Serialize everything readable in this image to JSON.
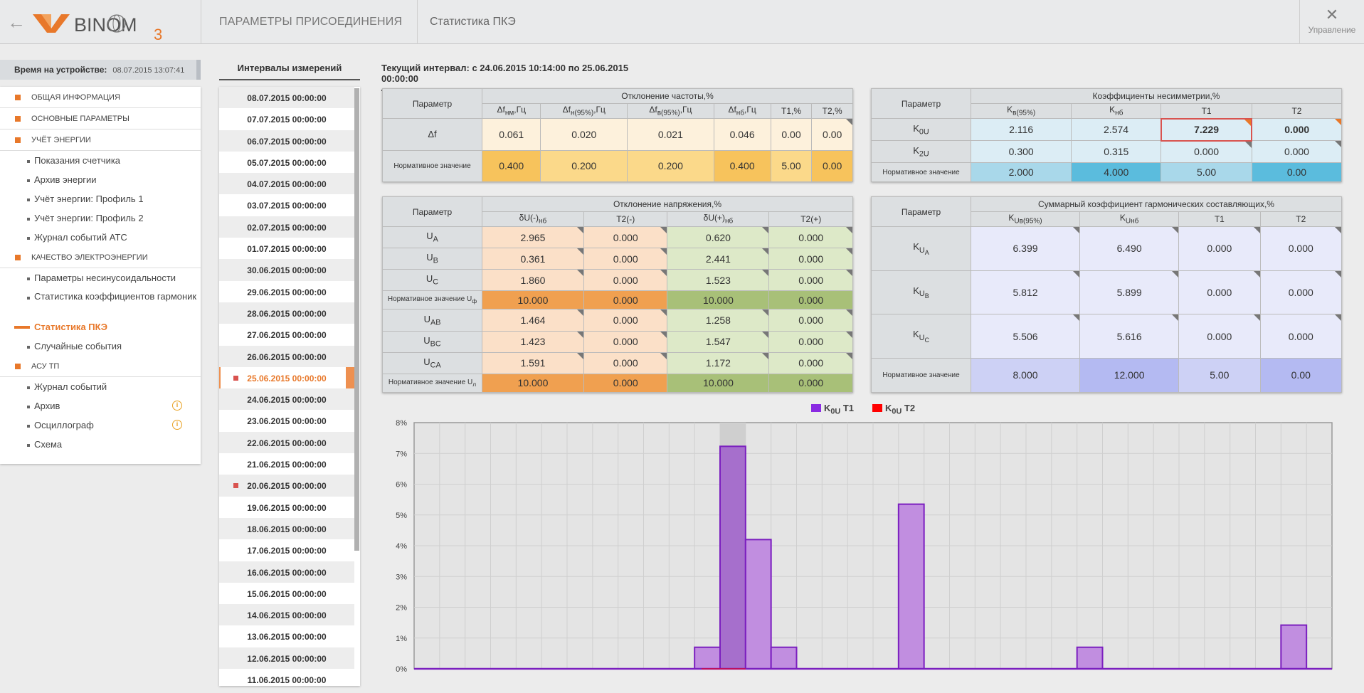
{
  "header": {
    "back_label": "←",
    "logo_text": "BINOM",
    "logo_sub": "3",
    "crumb1": "ПАРАМЕТРЫ ПРИСОЕДИНЕНИЯ",
    "crumb2": "Статистика ПКЭ",
    "mgmt_label": "Управление",
    "mgmt_icon": "wrench-icon"
  },
  "device": {
    "label": "Время на устройстве:",
    "value": "08.07.2015 13:07:41"
  },
  "sidebar": [
    {
      "type": "sec",
      "label": "ОБЩАЯ ИНФОРМАЦИЯ"
    },
    {
      "type": "sec",
      "label": "ОСНОВНЫЕ ПАРАМЕТРЫ"
    },
    {
      "type": "sec",
      "label": "УЧЁТ ЭНЕРГИИ"
    },
    {
      "type": "sub",
      "label": "Показания счетчика"
    },
    {
      "type": "sub",
      "label": "Архив энергии"
    },
    {
      "type": "sub",
      "label": "Учёт энергии: Профиль 1"
    },
    {
      "type": "sub",
      "label": "Учёт энергии: Профиль 2"
    },
    {
      "type": "sub",
      "label": "Журнал событий АТС"
    },
    {
      "type": "sec",
      "label": "КАЧЕСТВО ЭЛЕКТРОЭНЕРГИИ"
    },
    {
      "type": "sub",
      "label": "Параметры несинусоидальности"
    },
    {
      "type": "sub2",
      "label": "Статистика коэффициентов гармоник"
    },
    {
      "type": "act",
      "label": "Статистика ПКЭ"
    },
    {
      "type": "sub",
      "label": "Случайные события"
    },
    {
      "type": "sec",
      "label": "АСУ ТП"
    },
    {
      "type": "sub",
      "label": "Журнал событий"
    },
    {
      "type": "subi",
      "label": "Архив"
    },
    {
      "type": "subi",
      "label": "Осциллограф"
    },
    {
      "type": "sub",
      "label": "Схема"
    }
  ],
  "intervals": {
    "title": "Интервалы измерений",
    "items": [
      "08.07.2015 00:00:00",
      "07.07.2015 00:00:00",
      "06.07.2015 00:00:00",
      "05.07.2015 00:00:00",
      "04.07.2015 00:00:00",
      "03.07.2015 00:00:00",
      "02.07.2015 00:00:00",
      "01.07.2015 00:00:00",
      "30.06.2015 00:00:00",
      "29.06.2015 00:00:00",
      "28.06.2015 00:00:00",
      "27.06.2015 00:00:00",
      "26.06.2015 00:00:00",
      "25.06.2015 00:00:00",
      "24.06.2015 00:00:00",
      "23.06.2015 00:00:00",
      "22.06.2015 00:00:00",
      "21.06.2015 00:00:00",
      "20.06.2015 00:00:00",
      "19.06.2015 00:00:00",
      "18.06.2015 00:00:00",
      "17.06.2015 00:00:00",
      "16.06.2015 00:00:00",
      "15.06.2015 00:00:00",
      "14.06.2015 00:00:00",
      "13.06.2015 00:00:00",
      "12.06.2015 00:00:00",
      "11.06.2015 00:00:00"
    ],
    "selected": 13,
    "marked": [
      13,
      18
    ]
  },
  "current_interval": "Текущий интервал: с 24.06.2015 10:14:00 по 25.06.2015 00:00:00",
  "freq": {
    "param": "Параметр",
    "group": "Отклонение частоты,%",
    "cols": [
      "Δf<sub>нм</sub>,Гц",
      "Δf<sub>н(95%)</sub>,Гц",
      "Δf<sub>в(95%)</sub>,Гц",
      "Δf<sub>нб</sub>,Гц",
      "T1,%",
      "T2,%"
    ],
    "row_label": "Δf",
    "row": [
      "0.061",
      "0.020",
      "0.021",
      "0.046",
      "0.00",
      "0.00"
    ],
    "norm_label": "Нормативное значение",
    "norm": [
      "0.400",
      "0.200",
      "0.200",
      "0.400",
      "5.00",
      "0.00"
    ]
  },
  "unb": {
    "param": "Параметр",
    "group": "Коэффициенты несимметрии,%",
    "cols": [
      "K<sub>в(95%)</sub>",
      "K<sub>нб</sub>",
      "T1",
      "T2"
    ],
    "rows": [
      {
        "label": "K<sub>0U</sub>",
        "vals": [
          "2.116",
          "2.574",
          "7.229",
          "0.000"
        ]
      },
      {
        "label": "K<sub>2U</sub>",
        "vals": [
          "0.300",
          "0.315",
          "0.000",
          "0.000"
        ]
      }
    ],
    "norm_label": "Нормативное значение",
    "norm": [
      "2.000",
      "4.000",
      "5.00",
      "0.00"
    ]
  },
  "volt": {
    "param": "Параметр",
    "group": "Отклонение напряжения,%",
    "cols": [
      "δU(-)<sub>нб</sub>",
      "T2(-)",
      "δU(+)<sub>нб</sub>",
      "T2(+)"
    ],
    "rows": [
      {
        "label": "U<sub>A</sub>",
        "vals": [
          "2.965",
          "0.000",
          "0.620",
          "0.000"
        ]
      },
      {
        "label": "U<sub>B</sub>",
        "vals": [
          "0.361",
          "0.000",
          "2.441",
          "0.000"
        ]
      },
      {
        "label": "U<sub>C</sub>",
        "vals": [
          "1.860",
          "0.000",
          "1.523",
          "0.000"
        ]
      },
      {
        "label": "Нормативное значение U<sub>ф</sub>",
        "norm": true,
        "vals": [
          "10.000",
          "0.000",
          "10.000",
          "0.000"
        ]
      },
      {
        "label": "U<sub>AB</sub>",
        "vals": [
          "1.464",
          "0.000",
          "1.258",
          "0.000"
        ]
      },
      {
        "label": "U<sub>BC</sub>",
        "vals": [
          "1.423",
          "0.000",
          "1.547",
          "0.000"
        ]
      },
      {
        "label": "U<sub>CA</sub>",
        "vals": [
          "1.591",
          "0.000",
          "1.172",
          "0.000"
        ]
      },
      {
        "label": "Нормативное значение U<sub>л</sub>",
        "norm": true,
        "vals": [
          "10.000",
          "0.000",
          "10.000",
          "0.000"
        ]
      }
    ]
  },
  "harm": {
    "param": "Параметр",
    "group": "Суммарный коэффициент гармонических составляющих,%",
    "cols": [
      "K<sub>Uв(95%)</sub>",
      "K<sub>Uнб</sub>",
      "T1",
      "T2"
    ],
    "rows": [
      {
        "label": "K<sub>U<sub>A</sub></sub>",
        "vals": [
          "6.399",
          "6.490",
          "0.000",
          "0.000"
        ]
      },
      {
        "label": "K<sub>U<sub>B</sub></sub>",
        "vals": [
          "5.812",
          "5.899",
          "0.000",
          "0.000"
        ]
      },
      {
        "label": "K<sub>U<sub>C</sub></sub>",
        "vals": [
          "5.506",
          "5.616",
          "0.000",
          "0.000"
        ]
      }
    ],
    "norm_label": "Нормативное значение",
    "norm": [
      "8.000",
      "12.000",
      "5.00",
      "0.00"
    ]
  },
  "chart_data": {
    "type": "bar",
    "series": [
      {
        "name": "K0U T1",
        "color": "#8a2be2"
      },
      {
        "name": "K0U T2",
        "color": "#ff0000"
      }
    ],
    "legend": [
      "K<sub>0U</sub> T1",
      "K<sub>0U</sub> T2"
    ],
    "y_ticks": [
      "0%",
      "1%",
      "2%",
      "3%",
      "4%",
      "5%",
      "6%",
      "7%",
      "8%"
    ],
    "ylim": [
      0,
      8
    ],
    "bins": 36,
    "values": [
      0,
      0,
      0,
      0,
      0,
      0,
      0,
      0,
      0,
      0,
      0,
      0.7,
      7.23,
      4.2,
      0.7,
      0,
      0,
      0,
      0,
      5.35,
      0,
      0,
      0,
      0,
      0,
      0,
      0.7,
      0,
      0,
      0,
      0,
      0,
      0,
      0,
      1.42,
      0
    ],
    "highlight_bin": 12
  }
}
